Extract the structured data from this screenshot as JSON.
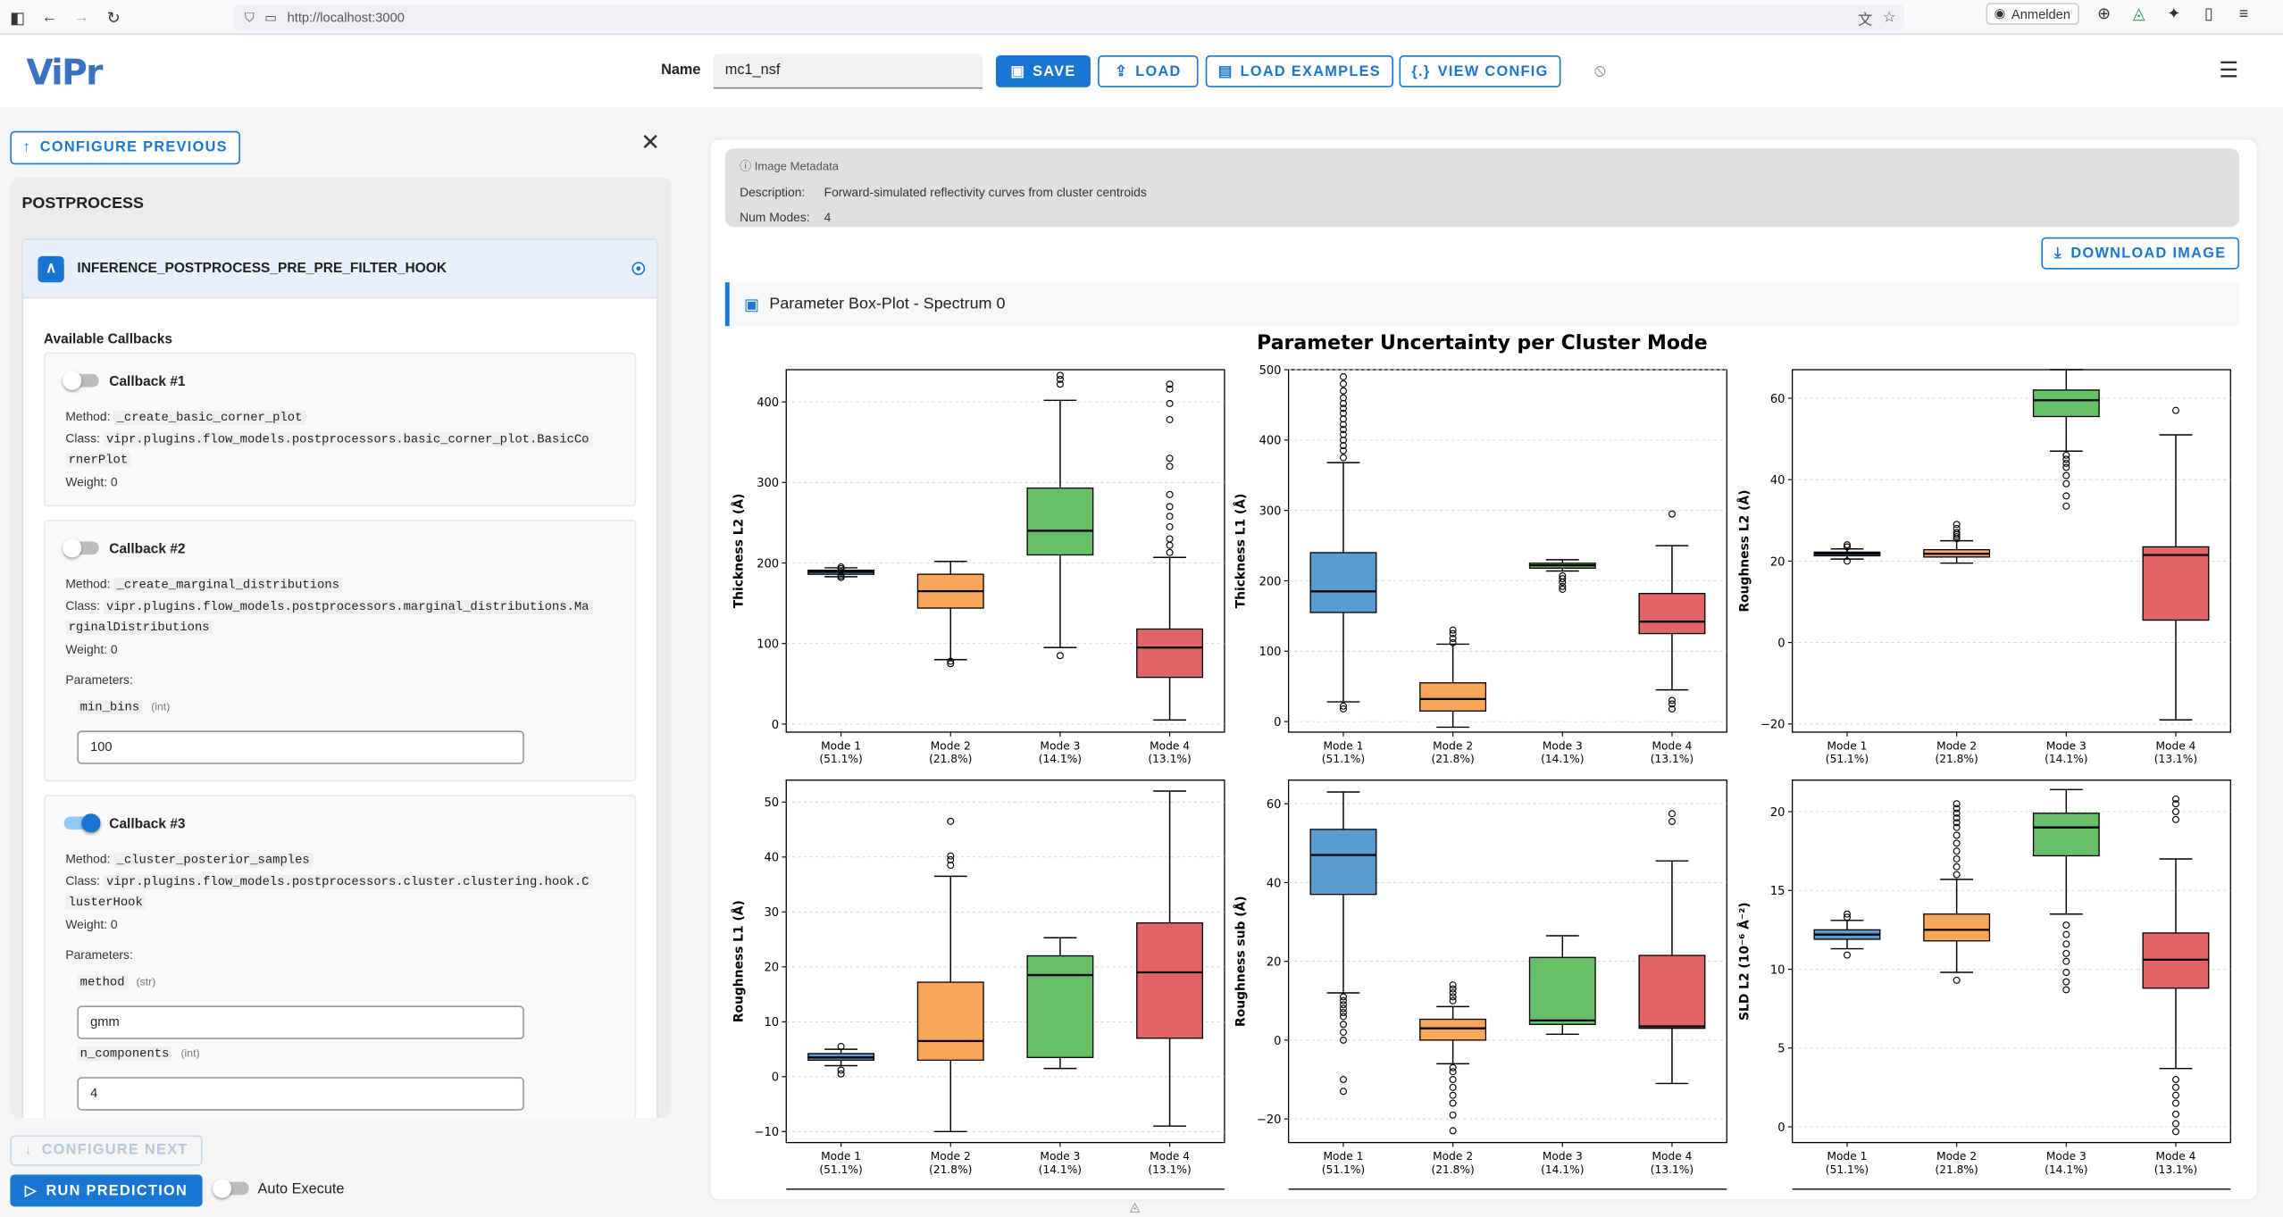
{
  "browser": {
    "url": "http://localhost:3000",
    "signin": "Anmelden"
  },
  "app": {
    "logo": "ViPr",
    "name_label": "Name",
    "name_value": "mc1_nsf",
    "buttons": {
      "save": "SAVE",
      "load": "LOAD",
      "load_examples": "LOAD EXAMPLES",
      "view_config": "VIEW CONFIG"
    }
  },
  "sidebar": {
    "configure_previous": "CONFIGURE PREVIOUS",
    "section_title": "POSTPROCESS",
    "hook_name": "INFERENCE_POSTPROCESS_PRE_PRE_FILTER_HOOK",
    "available_callbacks": "Available Callbacks",
    "callbacks": [
      {
        "title": "Callback #1",
        "enabled": false,
        "method_label": "Method:",
        "method": "_create_basic_corner_plot",
        "class_label": "Class:",
        "class_line1": "vipr.plugins.flow_models.postprocessors.basic_corner_plot.BasicCo",
        "class_line2": "rnerPlot",
        "weight": "Weight:  0"
      },
      {
        "title": "Callback #2",
        "enabled": false,
        "method_label": "Method:",
        "method": "_create_marginal_distributions",
        "class_label": "Class:",
        "class_line1": "vipr.plugins.flow_models.postprocessors.marginal_distributions.Ma",
        "class_line2": "rginalDistributions",
        "weight": "Weight:  0",
        "params_label": "Parameters:",
        "params": [
          {
            "name": "min_bins",
            "type": "(int)",
            "value": "100"
          }
        ]
      },
      {
        "title": "Callback #3",
        "enabled": true,
        "method_label": "Method:",
        "method": "_cluster_posterior_samples",
        "class_label": "Class:",
        "class_line1": "vipr.plugins.flow_models.postprocessors.cluster.clustering.hook.C",
        "class_line2": "lusterHook",
        "weight": "Weight:  0",
        "params_label": "Parameters:",
        "params": [
          {
            "name": "method",
            "type": "(str)",
            "value": "gmm"
          },
          {
            "name": "n_components",
            "type": "(int)",
            "value": "4"
          }
        ]
      }
    ],
    "configure_next": "CONFIGURE NEXT",
    "run_prediction": "RUN PREDICTION",
    "auto_execute": "Auto Execute"
  },
  "main": {
    "metadata_title": "Image Metadata",
    "description_label": "Description:",
    "description": "Forward-simulated reflectivity curves from cluster centroids",
    "num_modes_label": "Num Modes:",
    "num_modes": "4",
    "download": "DOWNLOAD IMAGE",
    "plot_header": "Parameter Box-Plot - Spectrum 0"
  },
  "colors": {
    "accent": "#1976d2",
    "mode1": "#5b9bd0",
    "mode2": "#fba75a",
    "mode3": "#67bf67",
    "mode4": "#e26466"
  },
  "chart_data": {
    "type": "box",
    "title": "Parameter Uncertainty per Cluster Mode",
    "categories": [
      "Mode 1",
      "Mode 2",
      "Mode 3",
      "Mode 4"
    ],
    "category_sublabels": [
      "(51.1%)",
      "(21.8%)",
      "(14.1%)",
      "(13.1%)"
    ],
    "panels": [
      {
        "ylabel": "Thickness L2 (Å)",
        "ylim": [
          -10,
          440
        ],
        "yticks": [
          0,
          100,
          200,
          300,
          400
        ],
        "ytick_labels": [
          "0",
          "100",
          "200",
          "300",
          "400"
        ],
        "boxes": [
          {
            "whislo": 183,
            "q1": 186,
            "med": 189,
            "q3": 191,
            "whishi": 194,
            "fliers": [
              182,
              184,
              193,
              195
            ]
          },
          {
            "whislo": 80,
            "q1": 144,
            "med": 165,
            "q3": 186,
            "whishi": 202,
            "fliers": [
              75,
              78
            ]
          },
          {
            "whislo": 95,
            "q1": 210,
            "med": 240,
            "q3": 293,
            "whishi": 402,
            "fliers": [
              85,
              422,
              428,
              433
            ]
          },
          {
            "whislo": 5,
            "q1": 58,
            "med": 95,
            "q3": 118,
            "whishi": 207,
            "fliers": [
              213,
              222,
              230,
              245,
              258,
              270,
              285,
              320,
              330,
              378,
              398,
              416,
              422
            ]
          }
        ]
      },
      {
        "ylabel": "Thickness L1 (Å)",
        "ylim": [
          -15,
          500
        ],
        "yticks": [
          0,
          100,
          200,
          300,
          400,
          500
        ],
        "ytick_labels": [
          "0",
          "100",
          "200",
          "300",
          "400",
          "500"
        ],
        "boxes": [
          {
            "whislo": 28,
            "q1": 155,
            "med": 185,
            "q3": 240,
            "whishi": 368,
            "fliers": [
              18,
              22,
              375,
              385,
              392,
              400,
              408,
              415,
              422,
              430,
              438,
              445,
              452,
              460,
              470,
              480,
              490
            ]
          },
          {
            "whislo": -8,
            "q1": 15,
            "med": 32,
            "q3": 55,
            "whishi": 110,
            "fliers": [
              112,
              118,
              125,
              130
            ]
          },
          {
            "whislo": 214,
            "q1": 218,
            "med": 222,
            "q3": 225,
            "whishi": 230,
            "fliers": [
              188,
              192,
              198,
              203,
              207
            ]
          },
          {
            "whislo": 45,
            "q1": 125,
            "med": 142,
            "q3": 182,
            "whishi": 250,
            "fliers": [
              18,
              25,
              30,
              295
            ]
          }
        ]
      },
      {
        "ylabel": "Roughness L2 (Å)",
        "ylim": [
          -22,
          67
        ],
        "yticks": [
          -20,
          0,
          20,
          40,
          60
        ],
        "ytick_labels": [
          "−20",
          "0",
          "20",
          "40",
          "60"
        ],
        "boxes": [
          {
            "whislo": 20.5,
            "q1": 21.3,
            "med": 21.8,
            "q3": 22.2,
            "whishi": 23,
            "fliers": [
              20,
              23.5,
              24
            ]
          },
          {
            "whislo": 19.5,
            "q1": 21,
            "med": 21.8,
            "q3": 22.8,
            "whishi": 25,
            "fliers": [
              25.5,
              26,
              26.5,
              27,
              28,
              29
            ]
          },
          {
            "whislo": 47,
            "q1": 55.5,
            "med": 59.5,
            "q3": 62,
            "whishi": 67,
            "fliers": [
              33.5,
              36,
              39,
              41,
              43,
              44,
              45,
              46
            ]
          },
          {
            "whislo": -19,
            "q1": 5.5,
            "med": 21.5,
            "q3": 23.5,
            "whishi": 51,
            "fliers": [
              57
            ]
          }
        ]
      },
      {
        "ylabel": "Roughness L1 (Å)",
        "ylim": [
          -12,
          54
        ],
        "yticks": [
          -10,
          0,
          10,
          20,
          30,
          40,
          50
        ],
        "ytick_labels": [
          "−10",
          "0",
          "10",
          "20",
          "30",
          "40",
          "50"
        ],
        "boxes": [
          {
            "whislo": 2,
            "q1": 3,
            "med": 3.5,
            "q3": 4.2,
            "whishi": 5,
            "fliers": [
              0.5,
              1.2,
              5.5
            ]
          },
          {
            "whislo": -10,
            "q1": 3,
            "med": 6.5,
            "q3": 17.2,
            "whishi": 36.5,
            "fliers": [
              38.5,
              39.5,
              40.2,
              46.5
            ]
          },
          {
            "whislo": 1.5,
            "q1": 3.5,
            "med": 18.5,
            "q3": 22,
            "whishi": 25.3,
            "fliers": []
          },
          {
            "whislo": -9,
            "q1": 7,
            "med": 19,
            "q3": 28,
            "whishi": 52,
            "fliers": []
          }
        ]
      },
      {
        "ylabel": "Roughness sub (Å)",
        "ylim": [
          -26,
          66
        ],
        "yticks": [
          -20,
          0,
          20,
          40,
          60
        ],
        "ytick_labels": [
          "−20",
          "0",
          "20",
          "40",
          "60"
        ],
        "boxes": [
          {
            "whislo": 12,
            "q1": 37,
            "med": 47,
            "q3": 53.5,
            "whishi": 63,
            "fliers": [
              -13,
              -10,
              0,
              2,
              4,
              6,
              7,
              8,
              9,
              10,
              11
            ]
          },
          {
            "whislo": -6,
            "q1": 0,
            "med": 3,
            "q3": 5.3,
            "whishi": 8.5,
            "fliers": [
              -23,
              -19,
              -16,
              -14,
              -12,
              -10,
              -8,
              -7,
              10,
              11,
              12,
              13,
              14
            ]
          },
          {
            "whislo": 1.5,
            "q1": 4,
            "med": 5,
            "q3": 21,
            "whishi": 26.5,
            "fliers": []
          },
          {
            "whislo": -11,
            "q1": 3,
            "med": 3.5,
            "q3": 21.5,
            "whishi": 45.5,
            "fliers": [
              55.5,
              57.5
            ]
          }
        ]
      },
      {
        "ylabel": "SLD L2 (10⁻⁶ Å⁻²)",
        "ylim": [
          -1,
          22
        ],
        "yticks": [
          0,
          5,
          10,
          15,
          20
        ],
        "ytick_labels": [
          "0",
          "5",
          "10",
          "15",
          "20"
        ],
        "boxes": [
          {
            "whislo": 11.3,
            "q1": 11.9,
            "med": 12.2,
            "q3": 12.5,
            "whishi": 13.1,
            "fliers": [
              10.9,
              13.3,
              13.5
            ]
          },
          {
            "whislo": 9.8,
            "q1": 11.8,
            "med": 12.5,
            "q3": 13.5,
            "whishi": 15.7,
            "fliers": [
              9.3,
              16,
              16.5,
              17,
              17.5,
              18,
              18.5,
              19,
              19.3,
              19.6,
              19.9,
              20.2,
              20.5
            ]
          },
          {
            "whislo": 13.5,
            "q1": 17.2,
            "med": 19,
            "q3": 19.9,
            "whishi": 21.4,
            "fliers": [
              8.7,
              9.2,
              9.8,
              10.5,
              11,
              11.6,
              12.2,
              12.8
            ]
          },
          {
            "whislo": 3.7,
            "q1": 8.8,
            "med": 10.6,
            "q3": 12.3,
            "whishi": 17,
            "fliers": [
              -0.3,
              0.2,
              0.8,
              1.5,
              2,
              2.5,
              3,
              19.5,
              20,
              20.5,
              20.8
            ]
          }
        ]
      }
    ]
  }
}
